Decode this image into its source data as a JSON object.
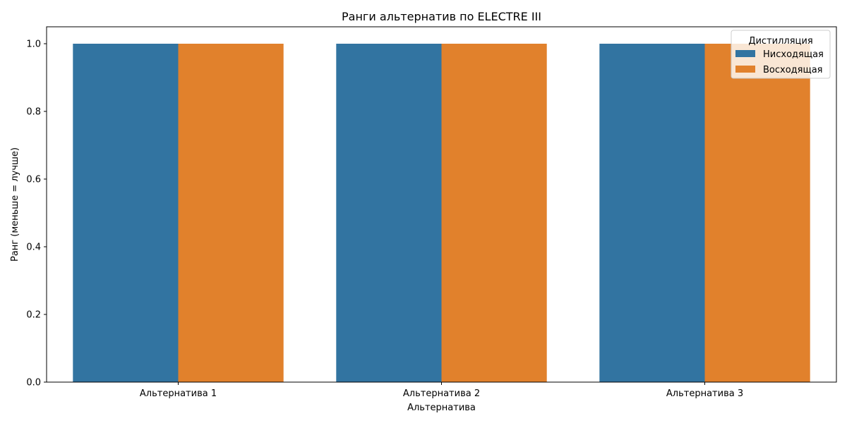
{
  "chart_data": {
    "type": "bar",
    "title": "Ранги альтернатив по ELECTRE III",
    "xlabel": "Альтернатива",
    "ylabel": "Ранг (меньше = лучше)",
    "categories": [
      "Альтернатива 1",
      "Альтернатива 2",
      "Альтернатива 3"
    ],
    "series": [
      {
        "name": "Нисходящая",
        "values": [
          1,
          1,
          1
        ],
        "color": "#3274a1"
      },
      {
        "name": "Восходящая",
        "values": [
          1,
          1,
          1
        ],
        "color": "#e1812c"
      }
    ],
    "ylim": [
      0,
      1.05
    ],
    "yticks": [
      "0.0",
      "0.2",
      "0.4",
      "0.6",
      "0.8",
      "1.0"
    ],
    "grid": false,
    "legend": {
      "title": "Дистилляция",
      "placement": "top-right"
    }
  }
}
